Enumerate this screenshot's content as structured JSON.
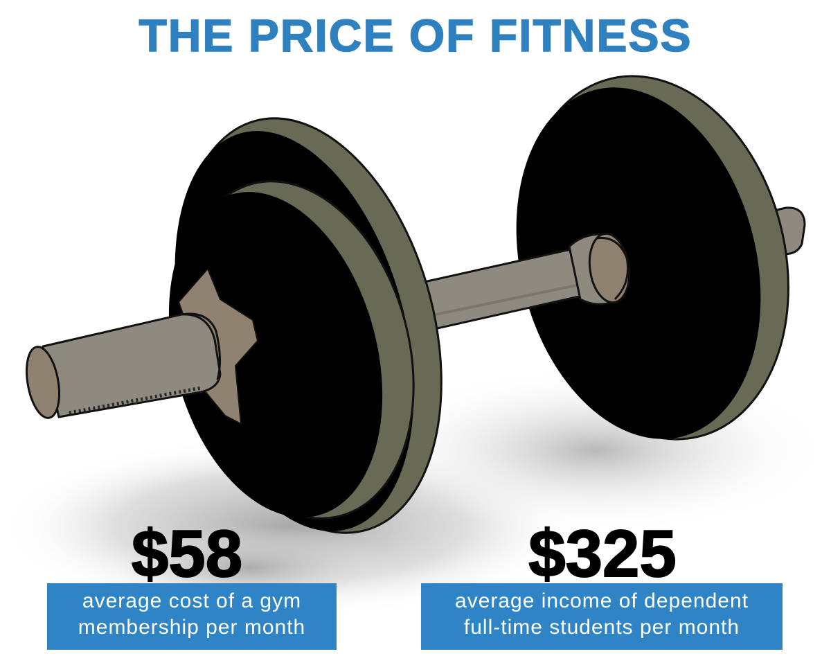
{
  "title": "THE PRICE OF FITNESS",
  "colors": {
    "title": "#2f80bf",
    "label_background": "#2f84c6",
    "plate_black": "#000000",
    "plate_rim": "#686a55",
    "bar": "#8e8a80",
    "collar": "#8f8270"
  },
  "illustration": "dumbbell",
  "stats": [
    {
      "value": "$58",
      "label_lines": [
        "average cost of a gym",
        "membership per month"
      ]
    },
    {
      "value": "$325",
      "label_lines": [
        "average income of dependent",
        "full-time students per month"
      ]
    }
  ]
}
